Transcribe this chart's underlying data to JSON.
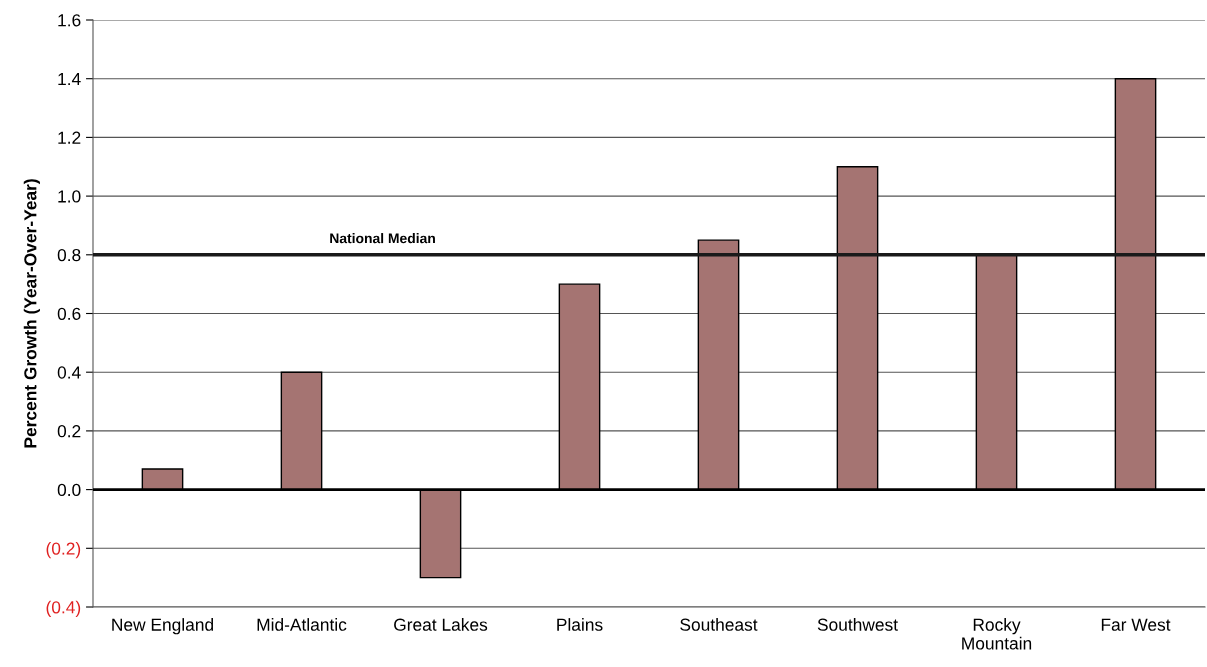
{
  "chart_data": {
    "type": "bar",
    "categories": [
      "New England",
      "Mid-Atlantic",
      "Great Lakes",
      "Plains",
      "Southeast",
      "Southwest",
      "Rocky\nMountain",
      "Far West"
    ],
    "values": [
      0.07,
      0.4,
      -0.3,
      0.7,
      0.85,
      1.1,
      0.8,
      1.4
    ],
    "color": "#a57472",
    "ylabel": "Percent Growth (Year-Over-Year)",
    "ylim": [
      -0.4,
      1.6
    ],
    "yticks": [
      {
        "value": -0.4,
        "label": "(0.4)"
      },
      {
        "value": -0.2,
        "label": "(0.2)"
      },
      {
        "value": 0,
        "label": "0.0"
      },
      {
        "value": 0.2,
        "label": "0.2"
      },
      {
        "value": 0.4,
        "label": "0.4"
      },
      {
        "value": 0.6,
        "label": "0.6"
      },
      {
        "value": 0.8,
        "label": "0.8"
      },
      {
        "value": 1.0,
        "label": "1.0"
      },
      {
        "value": 1.2,
        "label": "1.2"
      },
      {
        "value": 1.4,
        "label": "1.4"
      },
      {
        "value": 1.6,
        "label": "1.6"
      }
    ],
    "grid": "y",
    "ref_lines": [
      {
        "axis": "y",
        "value": 0.8,
        "label": "National Median",
        "color": "#1a1a1a"
      }
    ]
  }
}
